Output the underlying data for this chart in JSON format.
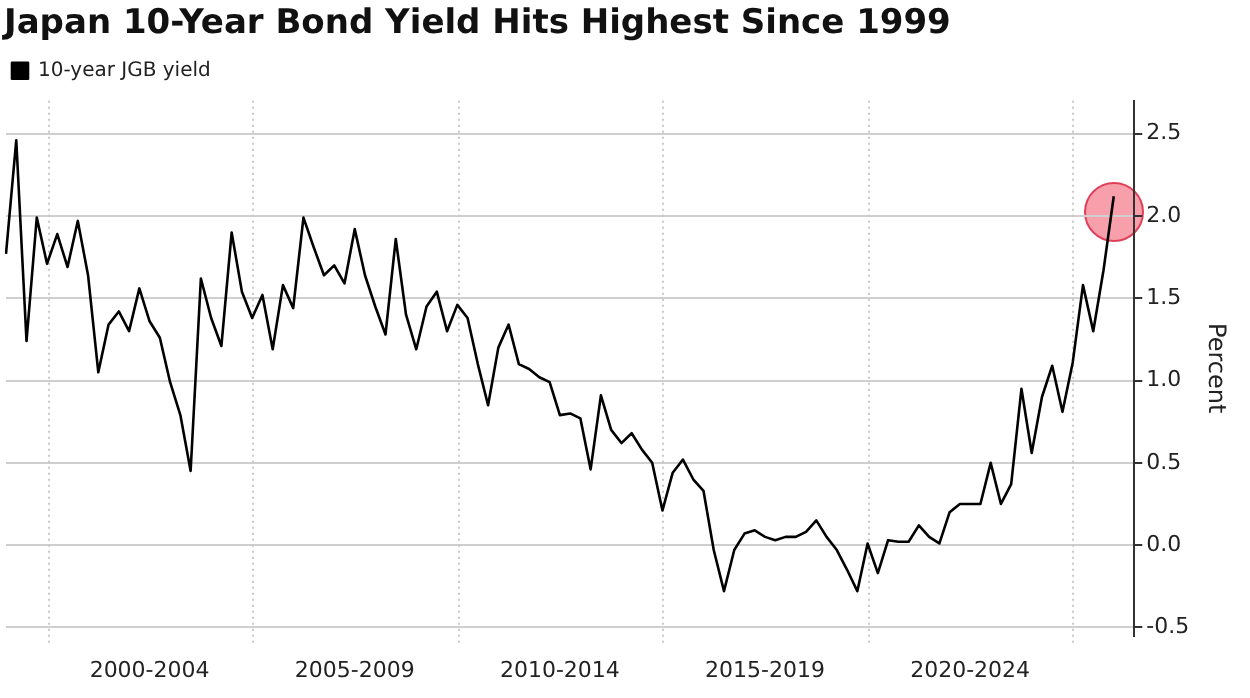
{
  "chart_data": {
    "type": "line",
    "title": "Japan 10-Year Bond Yield Hits Highest Since 1999",
    "ylabel": "Percent",
    "legend": "top left",
    "grid": true,
    "marker": "none",
    "line_style": "solid",
    "categories": [
      null,
      null,
      null,
      null,
      null,
      null,
      null,
      null,
      null,
      null,
      null,
      null,
      null,
      null,
      "2000-2004",
      null,
      null,
      null,
      null,
      null,
      null,
      null,
      null,
      null,
      null,
      null,
      null,
      null,
      null,
      null,
      null,
      null,
      null,
      null,
      "2005-2009",
      null,
      null,
      null,
      null,
      null,
      null,
      null,
      null,
      null,
      null,
      null,
      null,
      null,
      null,
      null,
      null,
      null,
      null,
      null,
      "2010-2014",
      null,
      null,
      null,
      null,
      null,
      null,
      null,
      null,
      null,
      null,
      null,
      null,
      null,
      null,
      null,
      null,
      null,
      null,
      null,
      "2015-2019",
      null,
      null,
      null,
      null,
      null,
      null,
      null,
      null,
      null,
      null,
      null,
      null,
      null,
      null,
      null,
      null,
      null,
      null,
      null,
      "2020-2024",
      null,
      null,
      null,
      null,
      null,
      null,
      null,
      null,
      null,
      null,
      null,
      null,
      null,
      null,
      null,
      null
    ],
    "ylim": [
      -0.55,
      2.7
    ],
    "yticks": [
      -0.5,
      {
        "value": 0,
        "label": "0.0"
      },
      0.5,
      {
        "value": 1,
        "label": "1.0"
      },
      1.5,
      {
        "value": 2,
        "label": "2.0"
      },
      2.5
    ],
    "series": [
      {
        "name": "10-year JGB yield",
        "color": "#000000",
        "values": [
          1.77,
          2.46,
          1.24,
          1.99,
          1.71,
          1.89,
          1.69,
          1.97,
          1.64,
          1.05,
          1.34,
          1.42,
          1.3,
          1.56,
          1.36,
          1.26,
          0.99,
          0.79,
          0.45,
          1.62,
          1.38,
          1.21,
          1.9,
          1.54,
          1.38,
          1.52,
          1.19,
          1.58,
          1.44,
          1.99,
          1.81,
          1.64,
          1.7,
          1.59,
          1.92,
          1.64,
          1.45,
          1.28,
          1.86,
          1.4,
          1.19,
          1.45,
          1.54,
          1.3,
          1.46,
          1.38,
          1.1,
          0.85,
          1.2,
          1.34,
          1.1,
          1.07,
          1.02,
          0.99,
          0.79,
          0.8,
          0.77,
          0.46,
          0.91,
          0.7,
          0.62,
          0.68,
          0.58,
          0.5,
          0.21,
          0.44,
          0.52,
          0.4,
          0.33,
          -0.03,
          -0.28,
          -0.03,
          0.07,
          0.09,
          0.05,
          0.03,
          0.05,
          0.05,
          0.08,
          0.15,
          0.05,
          -0.03,
          -0.15,
          -0.28,
          0.01,
          -0.17,
          0.03,
          0.02,
          0.02,
          0.12,
          0.05,
          0.01,
          0.2,
          0.25,
          0.25,
          0.25,
          0.5,
          0.25,
          0.37,
          0.95,
          0.56,
          0.9,
          1.09,
          0.81,
          1.11,
          1.58,
          1.3,
          1.67,
          2.12,
          null,
          null
        ]
      }
    ]
  }
}
